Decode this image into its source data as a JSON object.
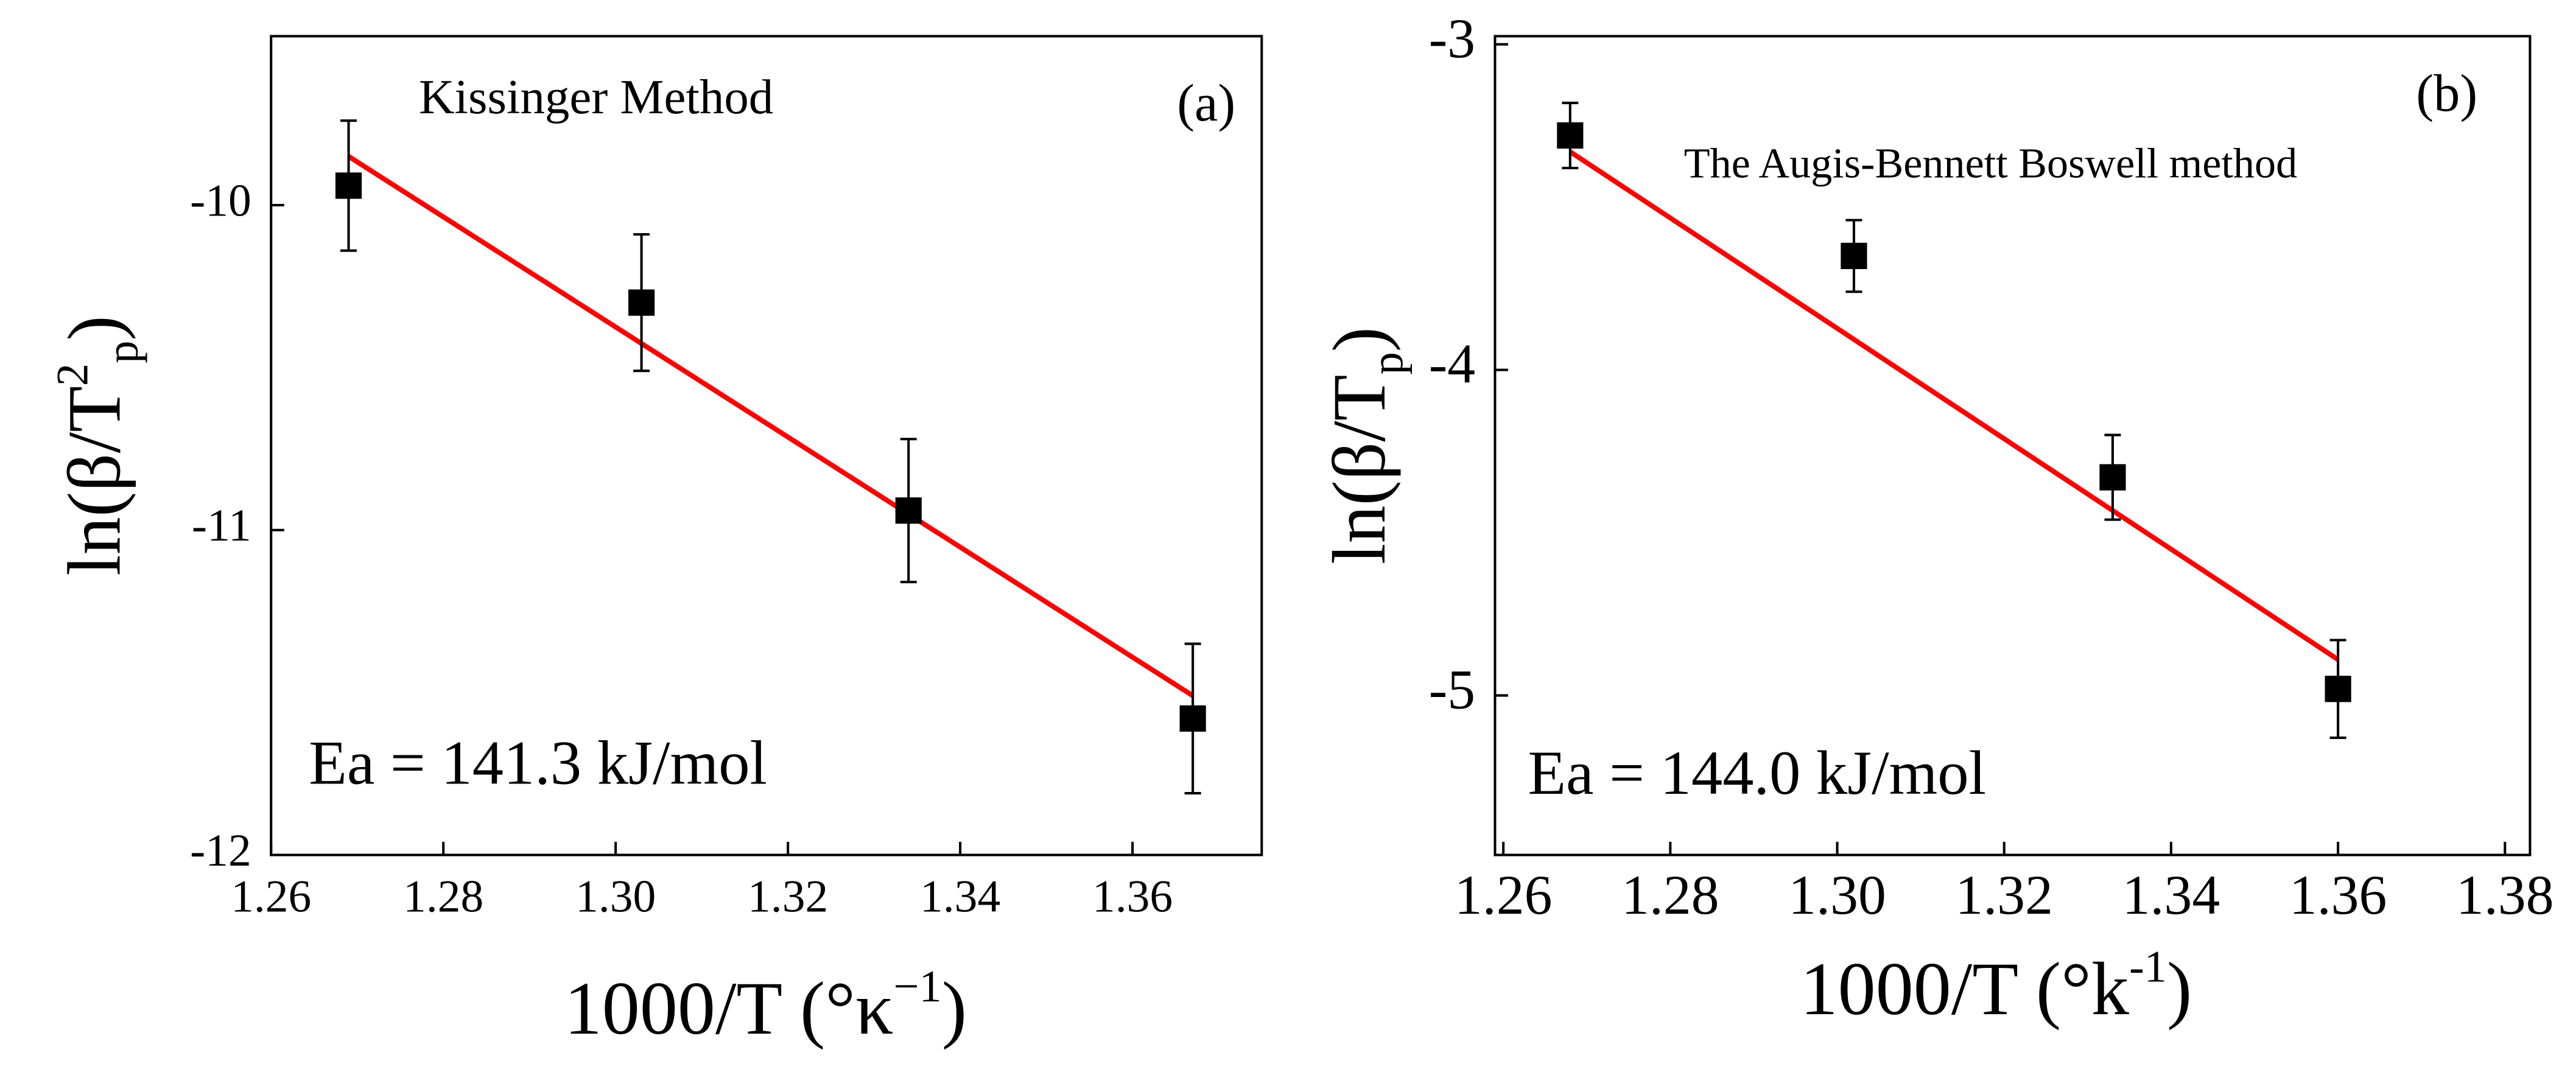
{
  "chart_data": [
    {
      "type": "scatter",
      "annotations": [
        "Kissinger Method",
        "(a)",
        "Ea = 141.3 kJ/mol"
      ],
      "x_label": {
        "main": "1000/T (°κ",
        "sup": "−1",
        "close": ")"
      },
      "y_label": {
        "main": "ln(β/T",
        "sup": "2",
        "sub": "p",
        "close": ")"
      },
      "x": [
        1.269,
        1.303,
        1.334,
        1.367
      ],
      "values": [
        -9.94,
        -10.3,
        -10.94,
        -11.58
      ],
      "errors": [
        0.2,
        0.21,
        0.22,
        0.23
      ],
      "color": "#000000",
      "fit": {
        "color": "#ff0000",
        "x": [
          1.269,
          1.367
        ],
        "y": [
          -9.85,
          -11.51
        ]
      },
      "xlim": [
        1.26,
        1.375
      ],
      "xticks": [
        {
          "value": 1.26,
          "label": "1.26"
        },
        {
          "value": 1.28,
          "label": "1.28"
        },
        {
          "value": 1.3,
          "label": "1.30"
        },
        {
          "value": 1.32,
          "label": "1.32"
        },
        {
          "value": 1.34,
          "label": "1.34"
        },
        {
          "value": 1.36,
          "label": "1.36"
        }
      ],
      "ylim": [
        -12,
        -9.48
      ],
      "yticks": [
        -12,
        -11,
        -10
      ]
    },
    {
      "type": "scatter",
      "annotations": [
        "The Augis-Bennett Boswell method",
        "(b)",
        "Ea = 144.0 kJ/mol"
      ],
      "x_label": {
        "main": "1000/T (°k",
        "sup": "-1",
        "close": ")"
      },
      "y_label": {
        "main": "ln(β/T",
        "sub": "p",
        "close": ")"
      },
      "x": [
        1.268,
        1.302,
        1.333,
        1.36
      ],
      "values": [
        -3.28,
        -3.65,
        -4.33,
        -4.98
      ],
      "errors": [
        0.1,
        0.11,
        0.13,
        0.15
      ],
      "color": "#000000",
      "fit": {
        "color": "#ff0000",
        "x": [
          1.268,
          1.36
        ],
        "y": [
          -3.33,
          -4.89
        ]
      },
      "xlim": [
        1.259,
        1.383
      ],
      "xticks": [
        {
          "value": 1.26,
          "label": "1.26"
        },
        {
          "value": 1.28,
          "label": "1.28"
        },
        {
          "value": 1.3,
          "label": "1.30"
        },
        {
          "value": 1.32,
          "label": "1.32"
        },
        {
          "value": 1.34,
          "label": "1.34"
        },
        {
          "value": 1.36,
          "label": "1.36"
        },
        {
          "value": 1.38,
          "label": "1.38"
        }
      ],
      "ylim": [
        -5.49,
        -2.975
      ],
      "yticks": [
        -5,
        -4,
        -3
      ]
    }
  ]
}
